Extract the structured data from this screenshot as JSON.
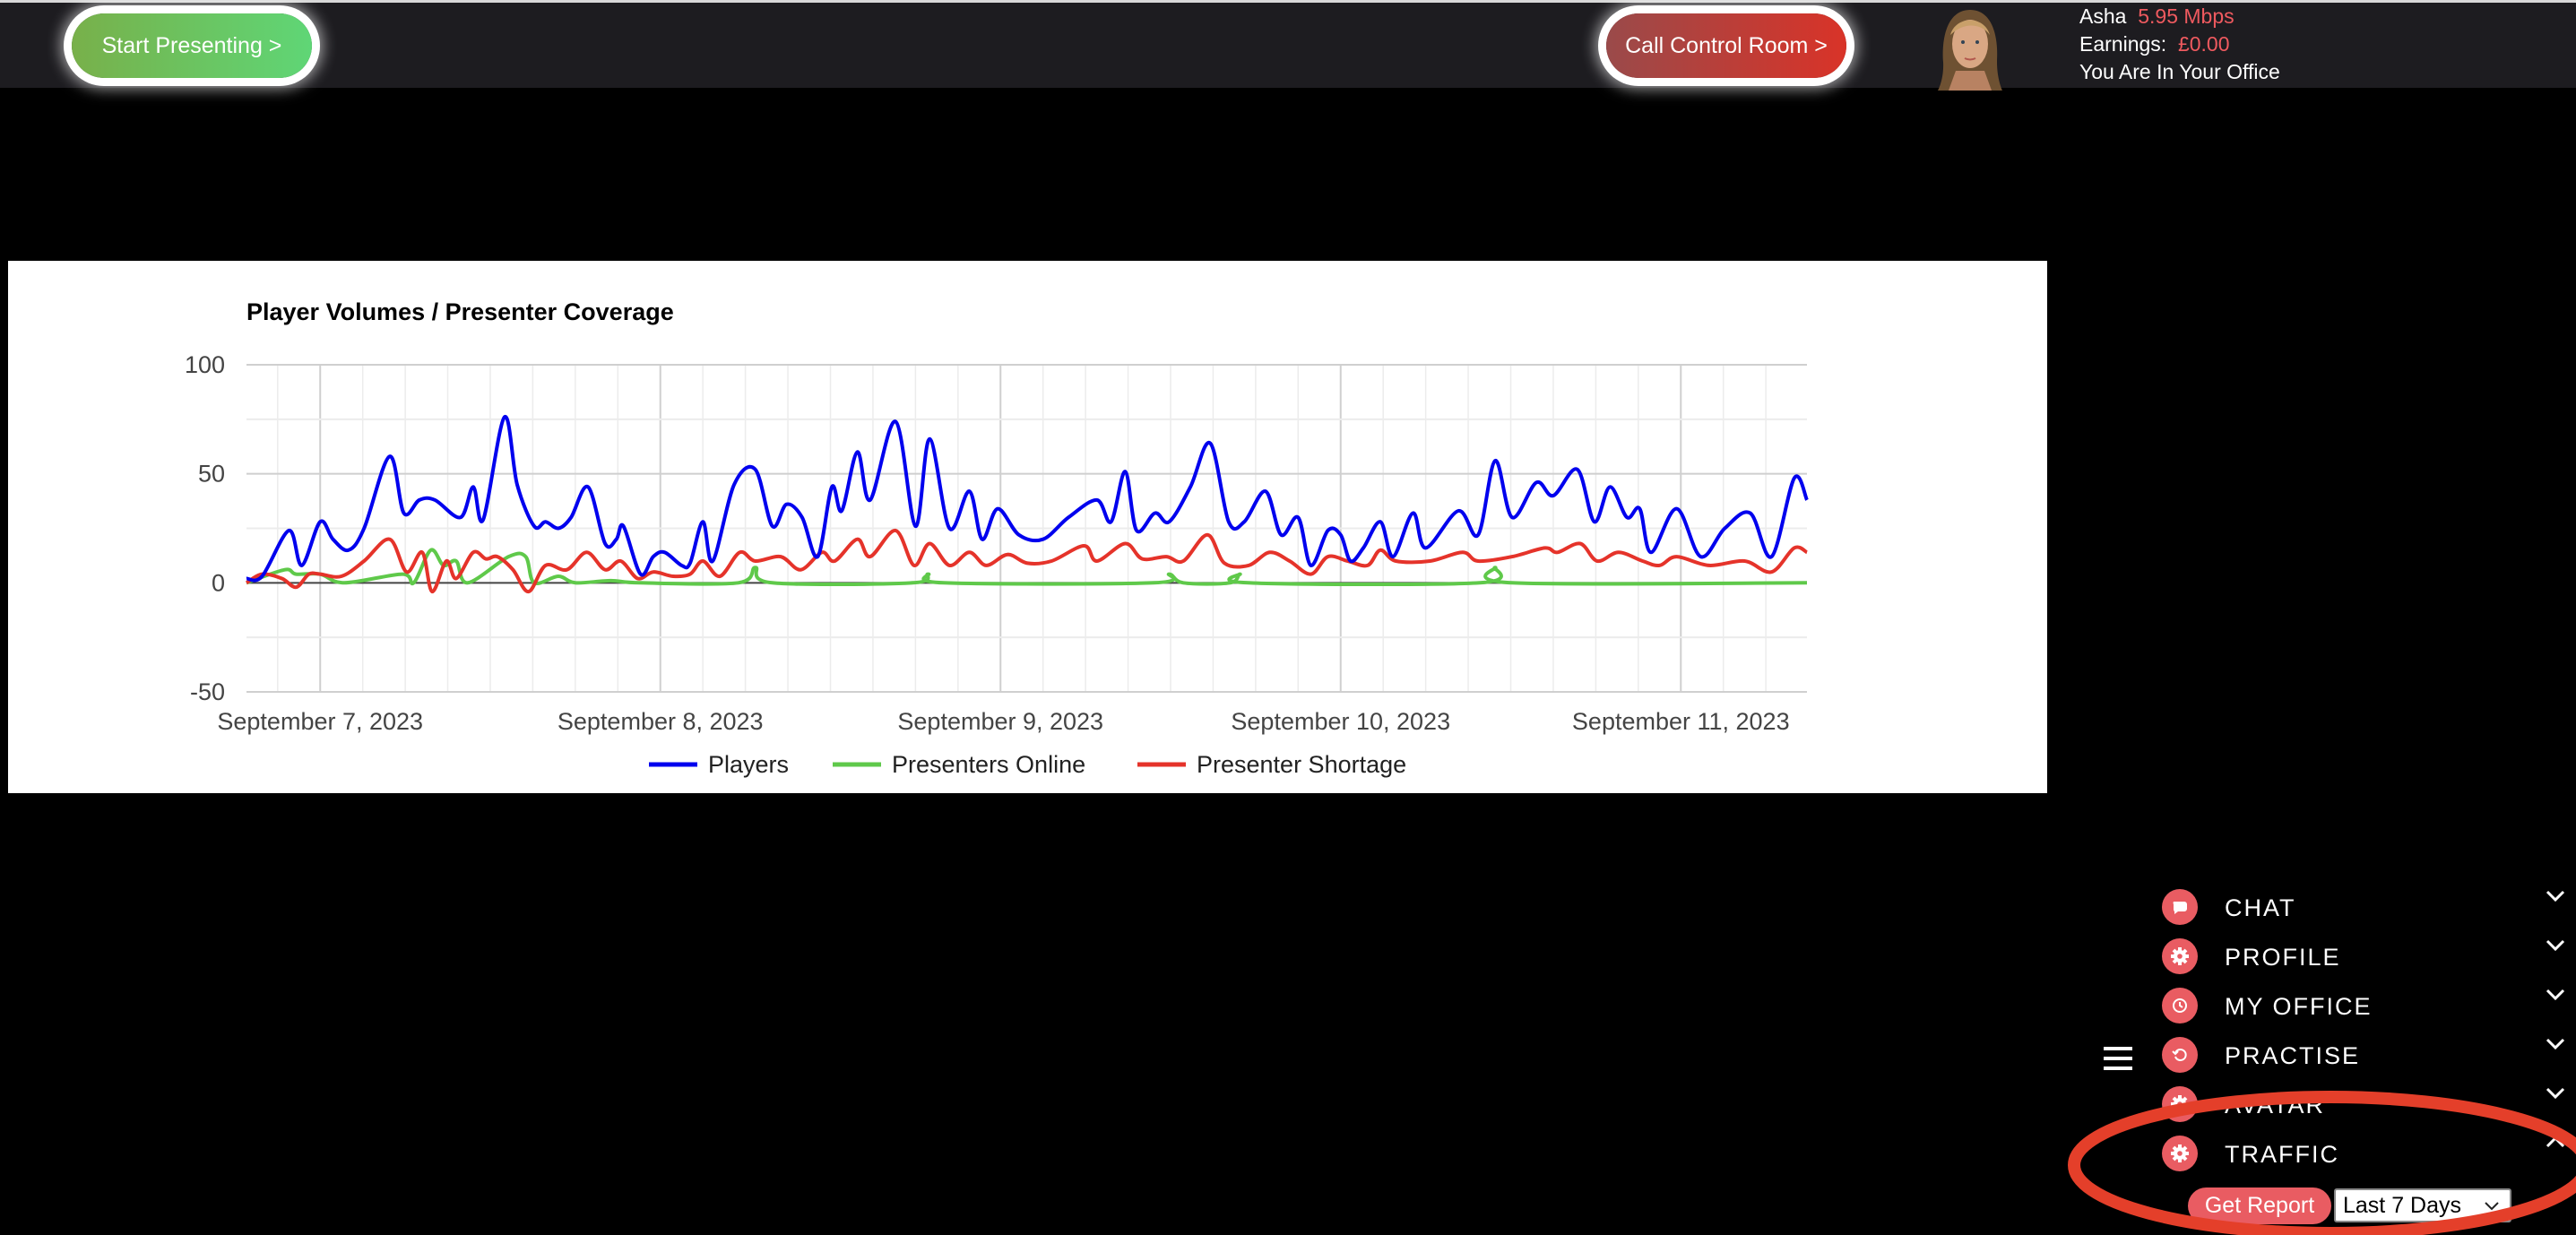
{
  "topbar": {
    "start_presenting": "Start Presenting >",
    "call_control_room": "Call Control Room >",
    "user_name": "Asha",
    "bandwidth": "5.95 Mbps",
    "earnings_label": "Earnings:",
    "earnings_value": "£0.00",
    "location": "You Are In Your Office"
  },
  "colors": {
    "accent": "#e95c62",
    "players": "#0000ee",
    "presenters_online": "#5fc94a",
    "presenter_shortage": "#e5332a"
  },
  "menu": {
    "items": [
      {
        "label": "CHAT",
        "icon": "chat-icon"
      },
      {
        "label": "PROFILE",
        "icon": "gear-icon"
      },
      {
        "label": "MY OFFICE",
        "icon": "history-icon"
      },
      {
        "label": "PRACTISE",
        "icon": "refresh-icon"
      },
      {
        "label": "AVATAR",
        "icon": "gear-icon"
      },
      {
        "label": "TRAFFIC",
        "icon": "gear-icon"
      }
    ],
    "get_report": "Get Report",
    "range_selected": "Last 7 Days"
  },
  "chart_data": {
    "type": "line",
    "title": "Player Volumes / Presenter Coverage",
    "x_unit": "hours since September 7, 2023 00:00",
    "xlim": [
      -5.2,
      104.9
    ],
    "ylim": [
      -50,
      100
    ],
    "y_ticks": [
      "100",
      "50",
      "0",
      "-50"
    ],
    "y_tick_values": [
      100,
      50,
      0,
      -50
    ],
    "x_ticks": [
      0,
      24,
      48,
      72,
      96
    ],
    "x_tick_labels": [
      "September 7, 2023",
      "September 8, 2023",
      "September 9, 2023",
      "September 10, 2023",
      "September 11, 2023"
    ],
    "legend": "bottom",
    "grid": true,
    "series": [
      {
        "name": "Players",
        "color": "#0000ee",
        "points": [
          [
            -5.2,
            2
          ],
          [
            -4.1,
            3
          ],
          [
            -2.2,
            24
          ],
          [
            -1.3,
            8
          ],
          [
            0,
            28
          ],
          [
            0.9,
            20
          ],
          [
            2,
            15
          ],
          [
            3.1,
            25
          ],
          [
            4.9,
            58
          ],
          [
            5.9,
            32
          ],
          [
            7,
            38
          ],
          [
            8.1,
            38
          ],
          [
            9.9,
            30
          ],
          [
            10.8,
            44
          ],
          [
            11.5,
            29
          ],
          [
            13,
            76
          ],
          [
            13.9,
            45
          ],
          [
            15.1,
            26
          ],
          [
            15.9,
            28
          ],
          [
            16.8,
            25
          ],
          [
            17.7,
            30
          ],
          [
            18.9,
            44
          ],
          [
            20.1,
            18
          ],
          [
            20.9,
            20
          ],
          [
            21.4,
            26
          ],
          [
            22.6,
            4
          ],
          [
            23.5,
            12
          ],
          [
            24.3,
            14
          ],
          [
            25.5,
            8
          ],
          [
            26.1,
            9
          ],
          [
            27,
            28
          ],
          [
            27.7,
            10
          ],
          [
            29.2,
            45
          ],
          [
            30.7,
            52
          ],
          [
            31.9,
            26
          ],
          [
            32.9,
            36
          ],
          [
            34,
            30
          ],
          [
            35.1,
            12
          ],
          [
            36.1,
            44
          ],
          [
            36.8,
            33
          ],
          [
            37.9,
            60
          ],
          [
            38.8,
            38
          ],
          [
            40.6,
            74
          ],
          [
            42,
            26
          ],
          [
            43,
            66
          ],
          [
            44.4,
            25
          ],
          [
            45.8,
            42
          ],
          [
            46.7,
            20
          ],
          [
            47.8,
            34
          ],
          [
            49.3,
            22
          ],
          [
            51,
            20
          ],
          [
            52.8,
            30
          ],
          [
            54.8,
            38
          ],
          [
            55.8,
            28
          ],
          [
            56.8,
            51
          ],
          [
            57.6,
            24
          ],
          [
            58.9,
            32
          ],
          [
            59.9,
            28
          ],
          [
            61.4,
            44
          ],
          [
            62.8,
            64
          ],
          [
            64.1,
            28
          ],
          [
            65.2,
            28
          ],
          [
            66.7,
            42
          ],
          [
            67.8,
            22
          ],
          [
            69,
            30
          ],
          [
            69.9,
            8
          ],
          [
            71.1,
            24
          ],
          [
            72,
            22
          ],
          [
            72.7,
            10
          ],
          [
            73.6,
            16
          ],
          [
            74.8,
            28
          ],
          [
            75.7,
            12
          ],
          [
            77.1,
            32
          ],
          [
            78,
            16
          ],
          [
            80.3,
            33
          ],
          [
            81.7,
            22
          ],
          [
            82.9,
            56
          ],
          [
            84.1,
            30
          ],
          [
            85.8,
            46
          ],
          [
            87,
            40
          ],
          [
            88.7,
            52
          ],
          [
            89.9,
            28
          ],
          [
            91,
            44
          ],
          [
            92.2,
            30
          ],
          [
            93.1,
            34
          ],
          [
            93.9,
            14
          ],
          [
            95.7,
            34
          ],
          [
            97.4,
            12
          ],
          [
            99.1,
            25
          ],
          [
            100.9,
            32
          ],
          [
            102.4,
            12
          ],
          [
            104,
            48
          ],
          [
            104.9,
            38
          ]
        ]
      },
      {
        "name": "Presenters Online",
        "color": "#5fc94a",
        "points": [
          [
            -5.2,
            0
          ],
          [
            -2.5,
            6
          ],
          [
            -1.7,
            4
          ],
          [
            0,
            4
          ],
          [
            1.7,
            0
          ],
          [
            5.8,
            4
          ],
          [
            6.6,
            0
          ],
          [
            7.8,
            15
          ],
          [
            8.7,
            8
          ],
          [
            9.6,
            10
          ],
          [
            10.4,
            0
          ],
          [
            13.3,
            12
          ],
          [
            14.5,
            12
          ],
          [
            15.1,
            0
          ],
          [
            16.8,
            3
          ],
          [
            18,
            0
          ],
          [
            20.5,
            1
          ],
          [
            22.6,
            0
          ],
          [
            29.5,
            0
          ],
          [
            30.7,
            7
          ],
          [
            31.9,
            0
          ],
          [
            41.8,
            0
          ],
          [
            42.9,
            4
          ],
          [
            44,
            0
          ],
          [
            58.8,
            0
          ],
          [
            59.9,
            4
          ],
          [
            60.9,
            0
          ],
          [
            64.2,
            0
          ],
          [
            64.9,
            4
          ],
          [
            65.5,
            0
          ],
          [
            81.8,
            0
          ],
          [
            82.9,
            7
          ],
          [
            84.1,
            0
          ],
          [
            104.9,
            0
          ]
        ]
      },
      {
        "name": "Presenter Shortage",
        "color": "#e5332a",
        "points": [
          [
            -5.2,
            0
          ],
          [
            -4.1,
            4
          ],
          [
            -2.7,
            2
          ],
          [
            -1.7,
            -2
          ],
          [
            -0.8,
            4
          ],
          [
            0,
            4
          ],
          [
            1.5,
            3
          ],
          [
            3.1,
            10
          ],
          [
            4.9,
            20
          ],
          [
            6.1,
            5
          ],
          [
            7.2,
            14
          ],
          [
            7.9,
            -4
          ],
          [
            8.9,
            10
          ],
          [
            9.6,
            2
          ],
          [
            10.8,
            14
          ],
          [
            11.7,
            11
          ],
          [
            12.5,
            12
          ],
          [
            13.6,
            6
          ],
          [
            14.7,
            -4
          ],
          [
            15.9,
            8
          ],
          [
            17.4,
            6
          ],
          [
            18.8,
            14
          ],
          [
            20.1,
            6
          ],
          [
            21.2,
            10
          ],
          [
            22.4,
            2
          ],
          [
            23.5,
            5
          ],
          [
            24.9,
            3
          ],
          [
            26.1,
            4
          ],
          [
            27,
            10
          ],
          [
            28.2,
            3
          ],
          [
            29.6,
            14
          ],
          [
            30.7,
            10
          ],
          [
            32.5,
            12
          ],
          [
            33.9,
            6
          ],
          [
            35.4,
            14
          ],
          [
            36.3,
            10
          ],
          [
            37.9,
            20
          ],
          [
            38.8,
            12
          ],
          [
            40.6,
            24
          ],
          [
            41.9,
            8
          ],
          [
            43,
            18
          ],
          [
            44.4,
            8
          ],
          [
            45.8,
            14
          ],
          [
            47,
            8
          ],
          [
            48.5,
            13
          ],
          [
            49.9,
            9
          ],
          [
            51.6,
            10
          ],
          [
            53.9,
            17
          ],
          [
            54.8,
            10
          ],
          [
            56.8,
            18
          ],
          [
            58,
            11
          ],
          [
            59.7,
            12
          ],
          [
            60.9,
            10
          ],
          [
            62.6,
            22
          ],
          [
            63.8,
            9
          ],
          [
            65.5,
            8
          ],
          [
            67,
            14
          ],
          [
            68.4,
            10
          ],
          [
            69.9,
            4
          ],
          [
            71.1,
            12
          ],
          [
            72.5,
            10
          ],
          [
            73.9,
            8
          ],
          [
            74.8,
            15
          ],
          [
            75.9,
            10
          ],
          [
            78.3,
            10
          ],
          [
            80.6,
            14
          ],
          [
            81.7,
            10
          ],
          [
            84.1,
            12
          ],
          [
            86.4,
            16
          ],
          [
            87.3,
            14
          ],
          [
            88.9,
            18
          ],
          [
            90.1,
            10
          ],
          [
            91.6,
            14
          ],
          [
            93.3,
            10
          ],
          [
            94.5,
            8
          ],
          [
            95.7,
            12
          ],
          [
            98,
            8
          ],
          [
            100.5,
            10
          ],
          [
            102.4,
            5
          ],
          [
            104,
            16
          ],
          [
            104.9,
            14
          ]
        ]
      }
    ]
  }
}
